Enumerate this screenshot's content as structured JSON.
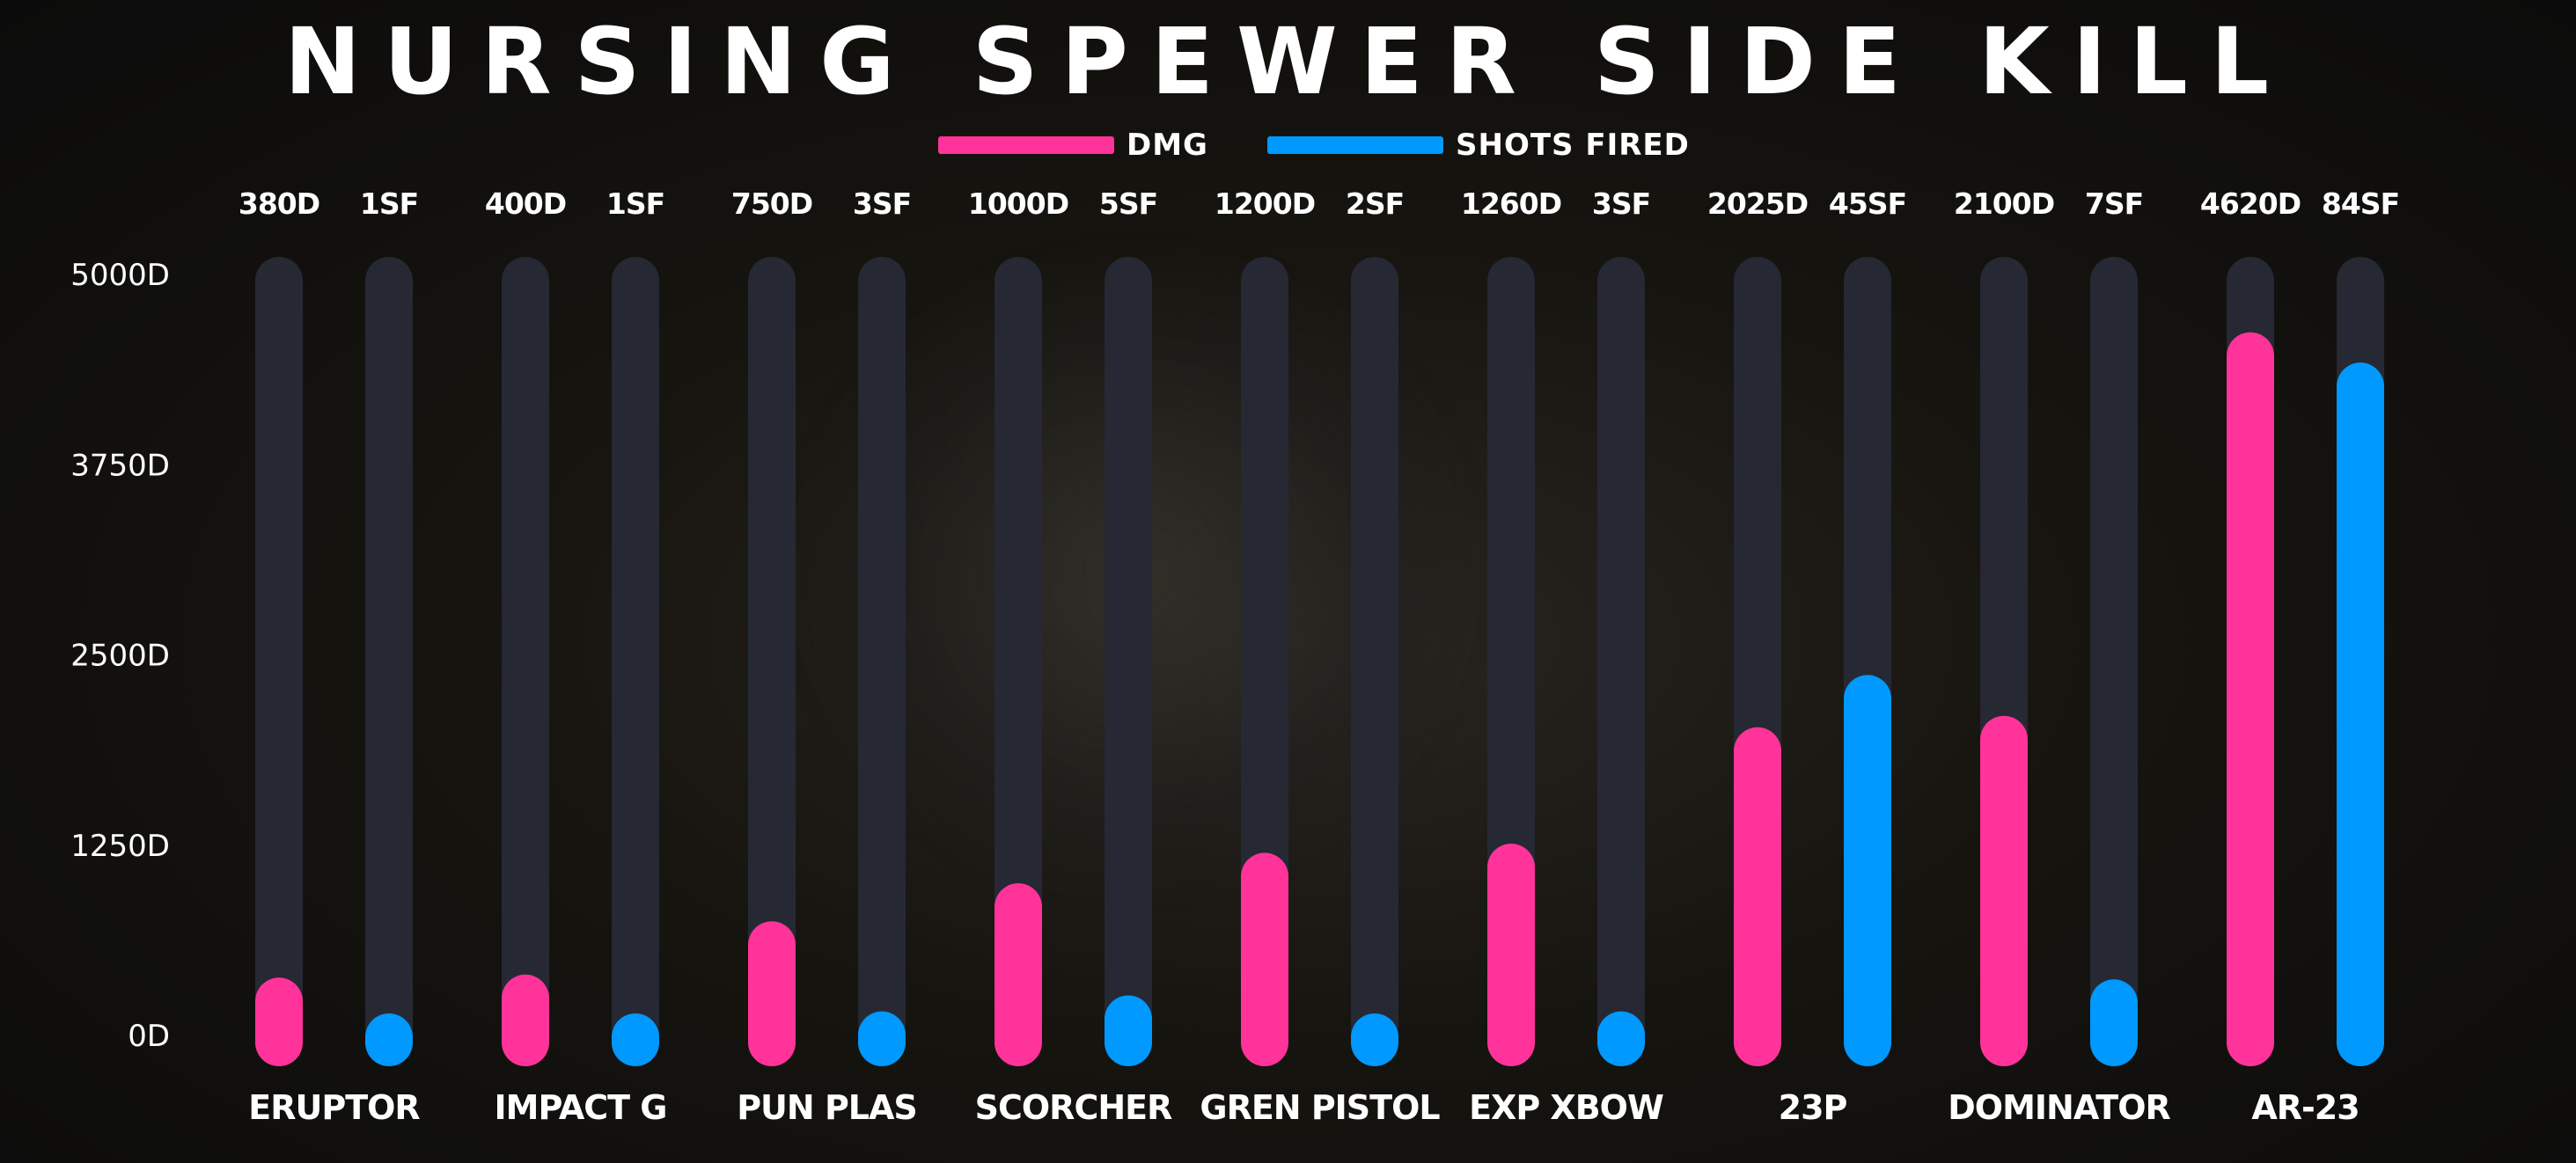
{
  "chart_data": {
    "type": "bar",
    "title": "NURSING SPEWER SIDE KILL",
    "categories": [
      "ERUPTOR",
      "IMPACT G",
      "PUN PLAS",
      "SCORCHER",
      "GREN PISTOL",
      "EXP XBOW",
      "23P",
      "DOMINATOR",
      "AR-23"
    ],
    "series": [
      {
        "name": "DMG",
        "color": "#ff3399",
        "values": [
          380,
          400,
          750,
          1000,
          1200,
          1260,
          2025,
          2100,
          4620
        ],
        "labels": [
          "380D",
          "400D",
          "750D",
          "1000D",
          "1200D",
          "1260D",
          "2025D",
          "2100D",
          "4620D"
        ]
      },
      {
        "name": "SHOTS FIRED",
        "color": "#0099ff",
        "values": [
          1,
          1,
          3,
          5,
          2,
          3,
          45,
          7,
          84
        ],
        "labels": [
          "1SF",
          "1SF",
          "3SF",
          "5SF",
          "2SF",
          "3SF",
          "45SF",
          "7SF",
          "84SF"
        ]
      }
    ],
    "ylim": [
      0,
      5000
    ],
    "yticks": [
      "5000D",
      "3750D",
      "2500D",
      "1250D",
      "0D"
    ],
    "ytick_values": [
      5000,
      3750,
      2500,
      1250,
      0
    ],
    "sf_display_max": 95,
    "track_color": "#262833",
    "legend_position": "top-center",
    "grid": false
  }
}
